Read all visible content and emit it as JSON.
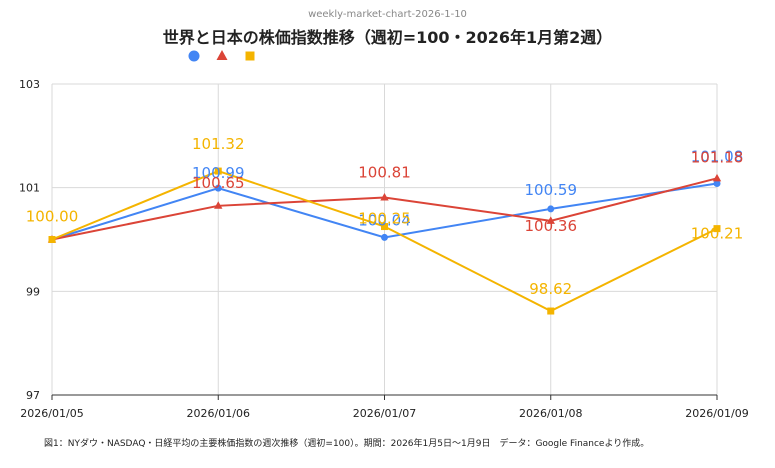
{
  "watermark": "weekly-market-chart-2026-1-10",
  "caption": "図1：NYダウ・NASDAQ・日経平均の主要株価指数の週次推移（週初=100）。期間：2026年1月5日〜1月9日　データ：Google Financeより作成。",
  "chart_data": {
    "type": "line",
    "title": "世界と日本の株価指数推移（週初=100・2026年1月第2週）",
    "categories": [
      "2026/01/05",
      "2026/01/06",
      "2026/01/07",
      "2026/01/08",
      "2026/01/09"
    ],
    "ylim": [
      97,
      103
    ],
    "yticks": [
      97,
      99,
      101,
      103
    ],
    "grid": true,
    "legend_position": "top-center",
    "series": [
      {
        "name": "",
        "marker": "circle",
        "color": "#4285f4",
        "values": [
          100.0,
          100.99,
          100.04,
          100.59,
          101.08
        ],
        "labels": [
          "",
          "100.99",
          "100.04",
          "100.59",
          "101.08"
        ]
      },
      {
        "name": "",
        "marker": "triangle",
        "color": "#db4437",
        "values": [
          100.0,
          100.65,
          100.81,
          100.36,
          101.18
        ],
        "labels": [
          "",
          "100.65",
          "100.81",
          "100.36",
          "101.18"
        ]
      },
      {
        "name": "",
        "marker": "square",
        "color": "#f4b400",
        "values": [
          100.0,
          101.32,
          100.25,
          98.62,
          100.21
        ],
        "labels": [
          "100.00",
          "101.32",
          "100.25",
          "98.62",
          "100.21"
        ]
      }
    ]
  }
}
